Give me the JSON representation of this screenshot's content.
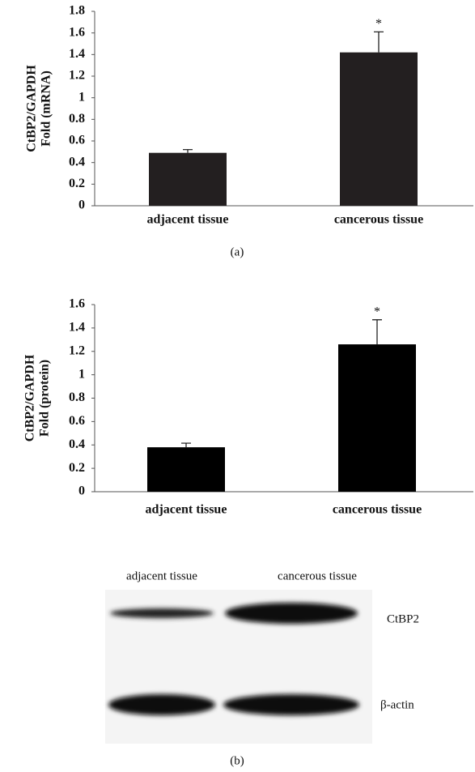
{
  "chart_data": [
    {
      "type": "bar",
      "ylabel": [
        "CtBP2/GAPDH",
        "Fold (mRNA)"
      ],
      "categories": [
        "adjacent tissue",
        "cancerous tissue"
      ],
      "values": [
        0.49,
        1.42
      ],
      "errors": [
        0.03,
        0.19
      ],
      "significance_marks": [
        null,
        "*"
      ],
      "color": "#231f20",
      "ylim": [
        0,
        1.8
      ],
      "yticks": [
        0,
        0.2,
        0.4,
        0.6,
        0.8,
        1,
        1.2,
        1.4,
        1.6,
        1.8
      ],
      "grid": false,
      "panel": "(a)"
    },
    {
      "type": "bar",
      "ylabel": [
        "CtBP2/GAPDH",
        "Fold (protein)"
      ],
      "categories": [
        "adjacent tissue",
        "cancerous tissue"
      ],
      "values": [
        0.38,
        1.26
      ],
      "errors": [
        0.035,
        0.21
      ],
      "significance_marks": [
        null,
        "*"
      ],
      "color": "#000000",
      "ylim": [
        0,
        1.6
      ],
      "yticks": [
        0,
        0.2,
        0.4,
        0.6,
        0.8,
        1,
        1.2,
        1.4,
        1.6
      ],
      "grid": false
    }
  ],
  "blot": {
    "lanes": [
      "adjacent tissue",
      "cancerous tissue"
    ],
    "rows": [
      "CtBP2",
      "β-actin"
    ],
    "panel": "(b)"
  }
}
